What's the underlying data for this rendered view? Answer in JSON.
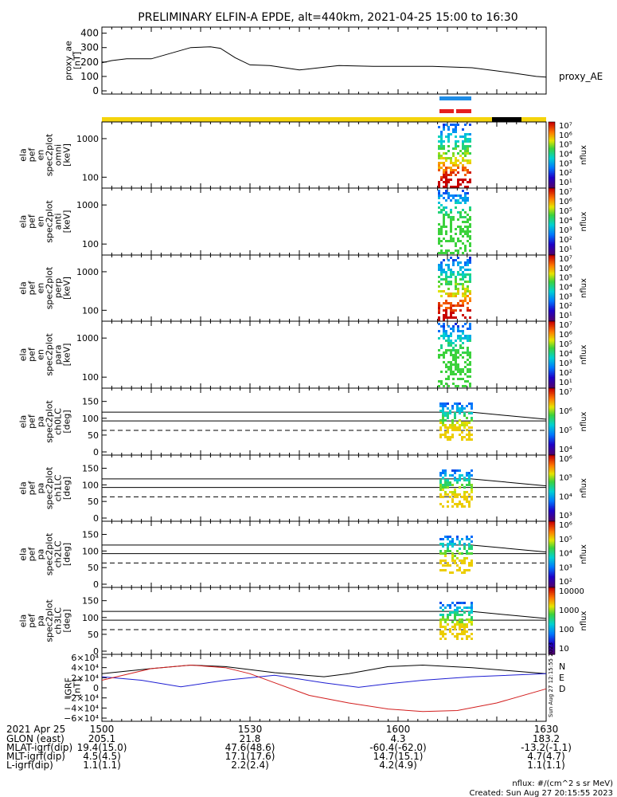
{
  "chart_data": {
    "type": "line",
    "title": "PRELIMINARY ELFIN-A EPDE, alt=440km, 2021-04-25 15:00 to 16:30",
    "time_axis": {
      "date_label": "2021 Apr 25",
      "tick_labels": [
        "1500",
        "1530",
        "1600",
        "1630"
      ],
      "range": [
        "15:00",
        "16:30"
      ]
    },
    "panels": [
      {
        "id": "proxy_ae",
        "type": "line",
        "ylabel": [
          "proxy_ae",
          "[nT]"
        ],
        "yticks": [
          "0",
          "100",
          "200",
          "300",
          "400"
        ],
        "ylim": [
          0,
          420
        ],
        "legend": "proxy_AE",
        "series": [
          {
            "name": "proxy_AE",
            "x": [
              0,
              2,
              5,
              10,
              18,
              22,
              24,
              27,
              30,
              34,
              40,
              48,
              55,
              60,
              67,
              75,
              82,
              88,
              90
            ],
            "values": [
              195,
              210,
              222,
              222,
              300,
              305,
              295,
              230,
              180,
              175,
              145,
              175,
              170,
              170,
              170,
              160,
              130,
              100,
              95
            ]
          }
        ]
      },
      {
        "id": "en_omni",
        "type": "heatmap",
        "ylabel": [
          "ela",
          "pef",
          "en",
          "spec2plot",
          "omni",
          "[keV]"
        ],
        "yticks": [
          "100",
          "1000"
        ],
        "scale": "log",
        "colorbar_label": "nflux",
        "colorbar_ticks": [
          "10⁷",
          "10⁶",
          "10⁵",
          "10⁴",
          "10³",
          "10²",
          "10¹"
        ]
      },
      {
        "id": "en_anti",
        "type": "heatmap",
        "ylabel": [
          "ela",
          "pef",
          "en",
          "spec2plot",
          "anti",
          "[keV]"
        ],
        "yticks": [
          "100",
          "1000"
        ],
        "scale": "log",
        "colorbar_label": "nflux",
        "colorbar_ticks": [
          "10⁷",
          "10⁶",
          "10⁵",
          "10⁴",
          "10³",
          "10²",
          "10¹"
        ]
      },
      {
        "id": "en_perp",
        "type": "heatmap",
        "ylabel": [
          "ela",
          "pef",
          "en",
          "spec2plot",
          "perp",
          "[keV]"
        ],
        "yticks": [
          "100",
          "1000"
        ],
        "scale": "log",
        "colorbar_label": "nflux",
        "colorbar_ticks": [
          "10⁷",
          "10⁶",
          "10⁵",
          "10⁴",
          "10³",
          "10²",
          "10¹"
        ]
      },
      {
        "id": "en_para",
        "type": "heatmap",
        "ylabel": [
          "ela",
          "pef",
          "en",
          "spec2plot",
          "para",
          "[keV]"
        ],
        "yticks": [
          "100",
          "1000"
        ],
        "scale": "log",
        "colorbar_label": "nflux",
        "colorbar_ticks": [
          "10⁷",
          "10⁶",
          "10⁵",
          "10⁴",
          "10³",
          "10²",
          "10¹"
        ]
      },
      {
        "id": "pa_ch0",
        "type": "heatmap",
        "ylabel": [
          "ela",
          "pef",
          "pa",
          "spec2plot",
          "ch0LC",
          "[deg]"
        ],
        "yticks": [
          "0",
          "50",
          "100",
          "150"
        ],
        "colorbar_label": "nflux",
        "colorbar_ticks": [
          "10⁷",
          "10⁶",
          "10⁵",
          "10⁴"
        ]
      },
      {
        "id": "pa_ch1",
        "type": "heatmap",
        "ylabel": [
          "ela",
          "pef",
          "pa",
          "spec2plot",
          "ch1LC",
          "[deg]"
        ],
        "yticks": [
          "0",
          "50",
          "100",
          "150"
        ],
        "colorbar_label": "nflux",
        "colorbar_ticks": [
          "10⁶",
          "10⁵",
          "10⁴",
          "10³"
        ]
      },
      {
        "id": "pa_ch2",
        "type": "heatmap",
        "ylabel": [
          "ela",
          "pef",
          "pa",
          "spec2plot",
          "ch2LC",
          "[deg]"
        ],
        "yticks": [
          "0",
          "50",
          "100",
          "150"
        ],
        "colorbar_label": "nflux",
        "colorbar_ticks": [
          "10⁶",
          "10⁵",
          "10⁴",
          "10³",
          "10²"
        ]
      },
      {
        "id": "pa_ch3",
        "type": "heatmap",
        "ylabel": [
          "ela",
          "pef",
          "pa",
          "spec2plot",
          "ch3LC",
          "[deg]"
        ],
        "yticks": [
          "0",
          "50",
          "100",
          "150"
        ],
        "colorbar_label": "nflux",
        "colorbar_ticks": [
          "10000",
          "1000",
          "100",
          "10"
        ]
      },
      {
        "id": "igrf",
        "type": "line",
        "ylabel": [
          "IGRF",
          "[nT]"
        ],
        "yticks": [
          "−6×10⁴",
          "−4×10⁴",
          "−2×10⁴",
          "0",
          "2×10⁴",
          "4×10⁴",
          "6×10⁴"
        ],
        "ylim": [
          -60000,
          60000
        ],
        "legend": [
          "N",
          "E",
          "D"
        ],
        "series": [
          {
            "name": "N",
            "color": "#000000",
            "x": [
              0,
              10,
              18,
              25,
              35,
              45,
              50,
              58,
              65,
              75,
              90
            ],
            "values": [
              28000,
              38000,
              45000,
              42000,
              30000,
              22000,
              28000,
              42000,
              45000,
              40000,
              28000
            ]
          },
          {
            "name": "E",
            "color": "#1e1ed2",
            "x": [
              0,
              8,
              16,
              25,
              35,
              45,
              52,
              58,
              65,
              75,
              90
            ],
            "values": [
              22000,
              15000,
              2000,
              15000,
              25000,
              10000,
              1000,
              8000,
              15000,
              22000,
              28000
            ]
          },
          {
            "name": "D",
            "color": "#d21e1e",
            "x": [
              0,
              10,
              18,
              25,
              30,
              35,
              42,
              50,
              58,
              65,
              72,
              80,
              90
            ],
            "values": [
              15000,
              38000,
              45000,
              40000,
              28000,
              10000,
              -15000,
              -30000,
              -42000,
              -47000,
              -45000,
              -30000,
              -2000
            ]
          }
        ]
      }
    ],
    "orbit_table": {
      "rows": [
        {
          "label": "GLON (east)",
          "values": [
            "205.1",
            "21.8",
            "4.3",
            "183.2"
          ]
        },
        {
          "label": "MLAT-igrf(dip)",
          "values": [
            "19.4(15.0)",
            "47.6(48.6)",
            "-60.4(-62.0)",
            "-13.2(-1.1)"
          ]
        },
        {
          "label": "MLT-igrf(dip)",
          "values": [
            "4.5(4.5)",
            "17.1(17.6)",
            "14.7(15.1)",
            "4.7(4.7)"
          ]
        },
        {
          "label": "L-igrf(dip)",
          "values": [
            "1.1(1.1)",
            "2.2(2.4)",
            "4.2(4.9)",
            "1.1(1.1)"
          ]
        }
      ]
    },
    "footer": {
      "units": "nflux: #/(cm^2 s sr MeV)",
      "created": "Created: Sun Aug 27 20:15:55 2023",
      "side_stamp": "Sun Aug 27 12:15:55 2023"
    },
    "colors": {
      "bar_yellow": "#f5d40c",
      "bar_black": "#000000",
      "bar_blue": "#1e8ce6",
      "bar_red": "#e61e1e"
    }
  }
}
